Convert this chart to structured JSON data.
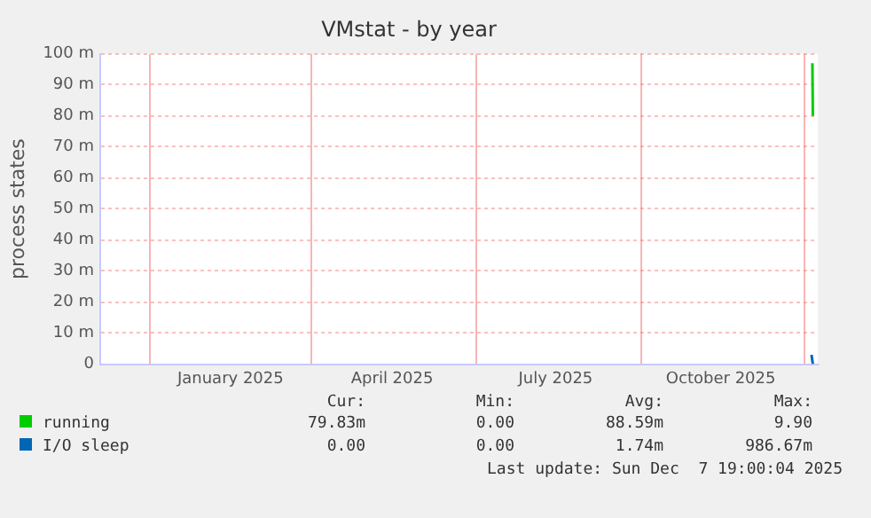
{
  "chart_data": {
    "type": "line",
    "title": "VMstat - by year",
    "ylabel": "process states",
    "xlim": [
      "2024-11-03",
      "2025-12-08"
    ],
    "xticks": [
      {
        "value": "2024-12-01",
        "label": null
      },
      {
        "value": "2025-01-15",
        "label": "January 2025"
      },
      {
        "value": "2025-03-01",
        "label": null
      },
      {
        "value": "2025-04-15",
        "label": "April 2025"
      },
      {
        "value": "2025-06-01",
        "label": null
      },
      {
        "value": "2025-07-15",
        "label": "July 2025"
      },
      {
        "value": "2025-09-01",
        "label": null
      },
      {
        "value": "2025-10-15",
        "label": "October 2025"
      },
      {
        "value": "2025-12-01",
        "label": null
      }
    ],
    "ylim": [
      0,
      100
    ],
    "yticks": [
      0,
      {
        "value": 10,
        "label": "10 m"
      },
      {
        "value": 20,
        "label": "20 m"
      },
      {
        "value": 30,
        "label": "30 m"
      },
      {
        "value": 40,
        "label": "40 m"
      },
      {
        "value": 50,
        "label": "50 m"
      },
      {
        "value": 60,
        "label": "60 m"
      },
      {
        "value": 70,
        "label": "70 m"
      },
      {
        "value": 80,
        "label": "80 m"
      },
      {
        "value": 90,
        "label": "90 m"
      },
      {
        "value": 100,
        "label": "100 m"
      }
    ],
    "grid": true,
    "legend": "bottom left",
    "marker": "none",
    "line_style": "solid",
    "series": [
      {
        "name": "running",
        "color": "#00cc00",
        "x": [
          "2025-12-05T00:00",
          "2025-12-05T06:00"
        ],
        "values": [
          97,
          80
        ]
      },
      {
        "name": "I/O sleep",
        "color": "#0066b3",
        "x": [
          "2025-12-04T12:00",
          "2025-12-05T06:00"
        ],
        "values": [
          3,
          0
        ]
      }
    ],
    "annotations": [
      "Cur:",
      "Min:",
      "Avg:",
      "Max:",
      "79.83m",
      "0.00",
      "88.59m",
      "9.90",
      "0.00",
      "0.00",
      "1.74m",
      "986.67m",
      "Last update: Sun Dec  7 19:00:04 2025"
    ]
  }
}
